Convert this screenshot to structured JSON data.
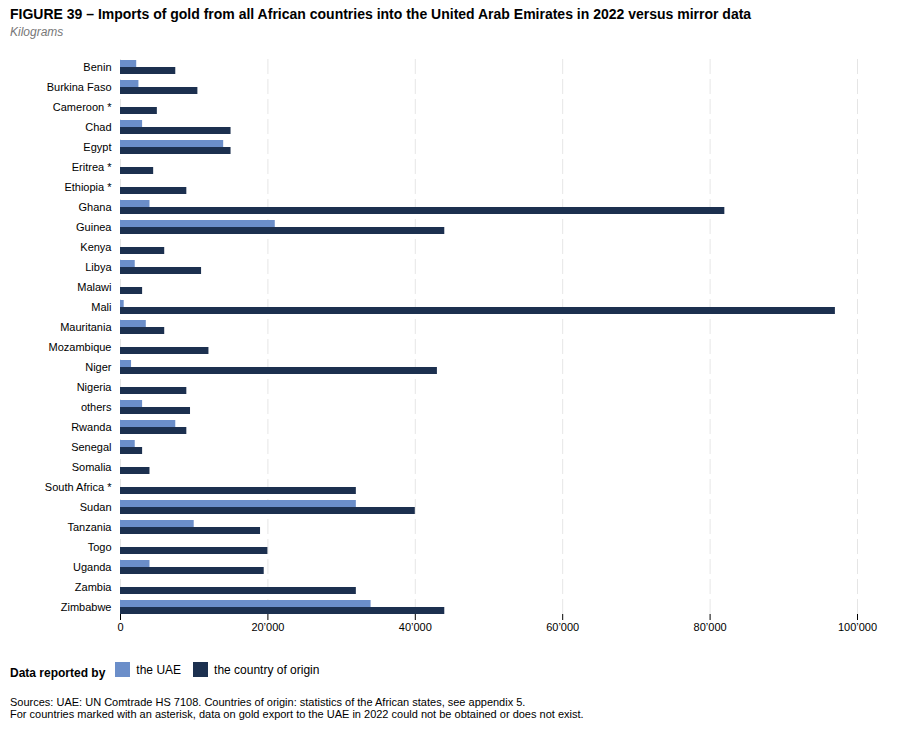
{
  "chart_data": {
    "type": "bar",
    "orientation": "horizontal",
    "title": "FIGURE 39 – Imports of gold from all African countries into the United Arab Emirates in 2022 versus mirror data",
    "xlabel": "Kilograms",
    "categories": [
      "Benin",
      "Burkina Faso",
      "Cameroon *",
      "Chad",
      "Egypt",
      "Eritrea *",
      "Ethiopia *",
      "Ghana",
      "Guinea",
      "Kenya",
      "Libya",
      "Malawi",
      "Mali",
      "Mauritania",
      "Mozambique",
      "Niger",
      "Nigeria",
      "others",
      "Rwanda",
      "Senegal",
      "Somalia",
      "South Africa *",
      "Sudan",
      "Tanzania",
      "Togo",
      "Uganda",
      "Zambia",
      "Zimbabwe"
    ],
    "series": [
      {
        "name": "the UAE",
        "color": "#6b8ec9",
        "values": [
          2200,
          2500,
          0,
          3000,
          14000,
          0,
          0,
          4000,
          21000,
          0,
          2000,
          0,
          500,
          3500,
          0,
          1500,
          0,
          3000,
          7500,
          2000,
          0,
          0,
          32000,
          10000,
          0,
          4000,
          0,
          34000
        ]
      },
      {
        "name": "the country of origin",
        "color": "#1c304f",
        "values": [
          7500,
          10500,
          5000,
          15000,
          15000,
          4500,
          9000,
          82000,
          44000,
          6000,
          11000,
          3000,
          97000,
          6000,
          12000,
          43000,
          9000,
          9500,
          9000,
          3000,
          4000,
          32000,
          40000,
          19000,
          20000,
          19500,
          32000,
          44000
        ]
      }
    ],
    "xlim": [
      0,
      100000
    ],
    "xticks": [
      0,
      {
        "value": 20000,
        "label": "20’000"
      },
      {
        "value": 40000,
        "label": "40’000"
      },
      {
        "value": 60000,
        "label": "60’000"
      },
      {
        "value": 80000,
        "label": "80’000"
      },
      {
        "value": 100000,
        "label": "100’000"
      }
    ],
    "grid": true,
    "legend": "bottom-left",
    "legend_title": "Data reported by",
    "caption": "Sources: UAE: UN Comtrade HS 7108. Countries of origin: statistics of the African states, see appendix 5.\nFor countries marked with an asterisk, data on gold export to the UAE in 2022 could not be obtained or does not exist."
  }
}
